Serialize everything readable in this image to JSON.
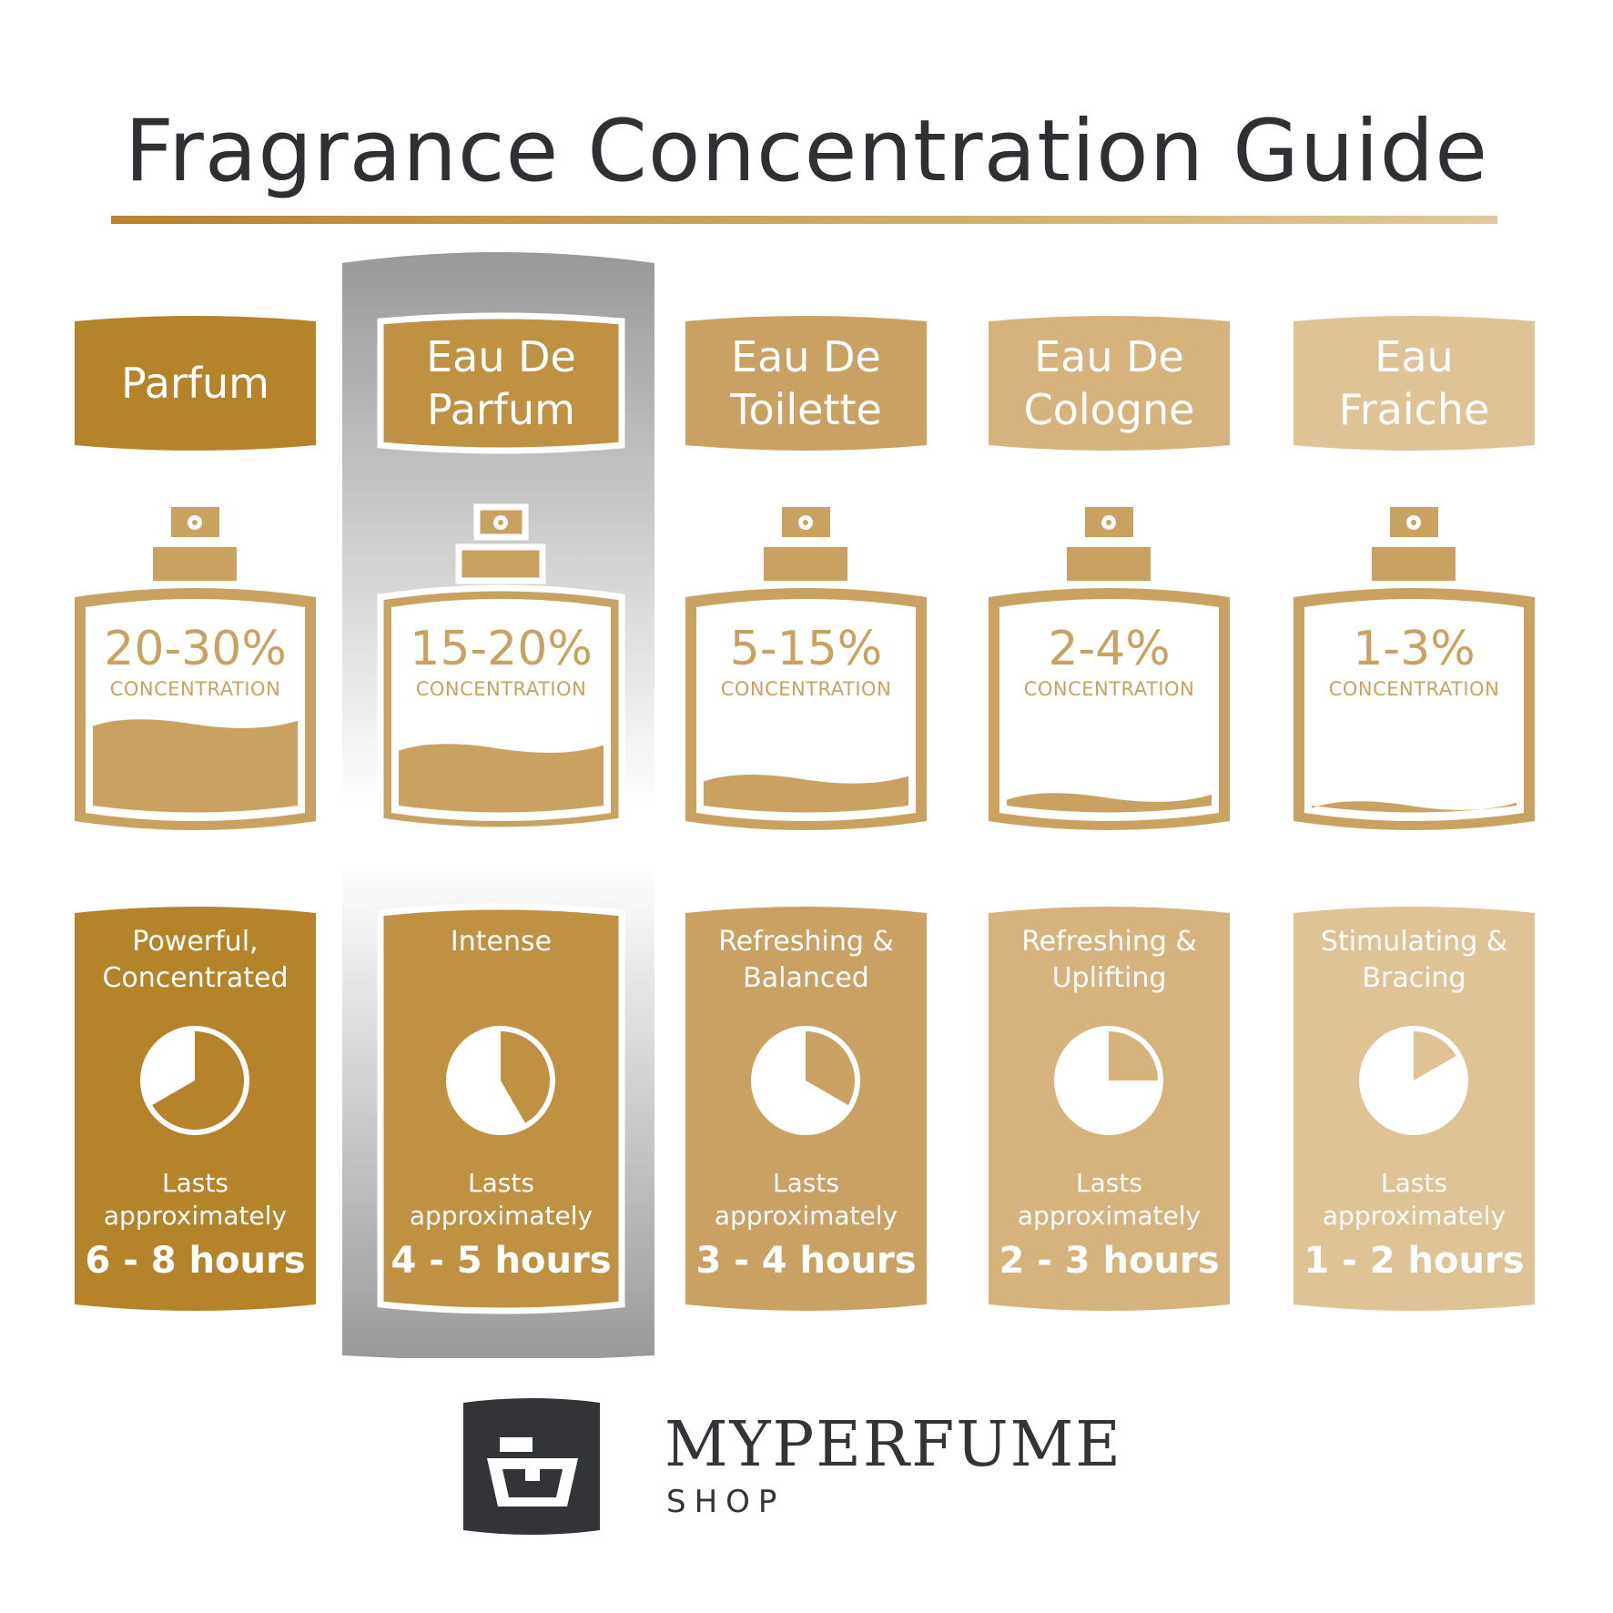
{
  "title": "Fragrance Concentration Guide",
  "highlighted_column": 1,
  "colors": {
    "title": "#2f3033",
    "bottle": "#c9a262",
    "highlight_gray": "#999999",
    "logo": "#333438"
  },
  "columns": [
    {
      "name_lines": [
        "Parfum"
      ],
      "concentration": "20-30%",
      "concentration_label": "CONCENTRATION",
      "liquid_level": 0.45,
      "descriptor_lines": [
        "Powerful,",
        "Concentrated"
      ],
      "duration_hours_max": 8,
      "lasts_label": "Lasts",
      "approx_label": "approximately",
      "hours": "6 - 8 hours",
      "color": "#b5832a"
    },
    {
      "name_lines": [
        "Eau De",
        "Parfum"
      ],
      "concentration": "15-20%",
      "concentration_label": "CONCENTRATION",
      "liquid_level": 0.33,
      "descriptor_lines": [
        "Intense"
      ],
      "duration_hours_max": 5,
      "lasts_label": "Lasts",
      "approx_label": "approximately",
      "hours": "4 - 5 hours",
      "color": "#bf9143"
    },
    {
      "name_lines": [
        "Eau De",
        "Toilette"
      ],
      "concentration": "5-15%",
      "concentration_label": "CONCENTRATION",
      "liquid_level": 0.18,
      "descriptor_lines": [
        "Refreshing &",
        "Balanced"
      ],
      "duration_hours_max": 4,
      "lasts_label": "Lasts",
      "approx_label": "approximately",
      "hours": "3 - 4 hours",
      "color": "#c9a263"
    },
    {
      "name_lines": [
        "Eau De",
        "Cologne"
      ],
      "concentration": "2-4%",
      "concentration_label": "CONCENTRATION",
      "liquid_level": 0.09,
      "descriptor_lines": [
        "Refreshing &",
        "Uplifting"
      ],
      "duration_hours_max": 3,
      "lasts_label": "Lasts",
      "approx_label": "approximately",
      "hours": "2 - 3 hours",
      "color": "#d6b27c"
    },
    {
      "name_lines": [
        "Eau",
        "Fraiche"
      ],
      "concentration": "1-3%",
      "concentration_label": "CONCENTRATION",
      "liquid_level": 0.05,
      "descriptor_lines": [
        "Stimulating &",
        "Bracing"
      ],
      "duration_hours_max": 2,
      "lasts_label": "Lasts",
      "approx_label": "approximately",
      "hours": "1 - 2 hours",
      "color": "#dfc295"
    }
  ],
  "logo": {
    "brand": "MYPERFUME",
    "sub": "SHOP"
  }
}
